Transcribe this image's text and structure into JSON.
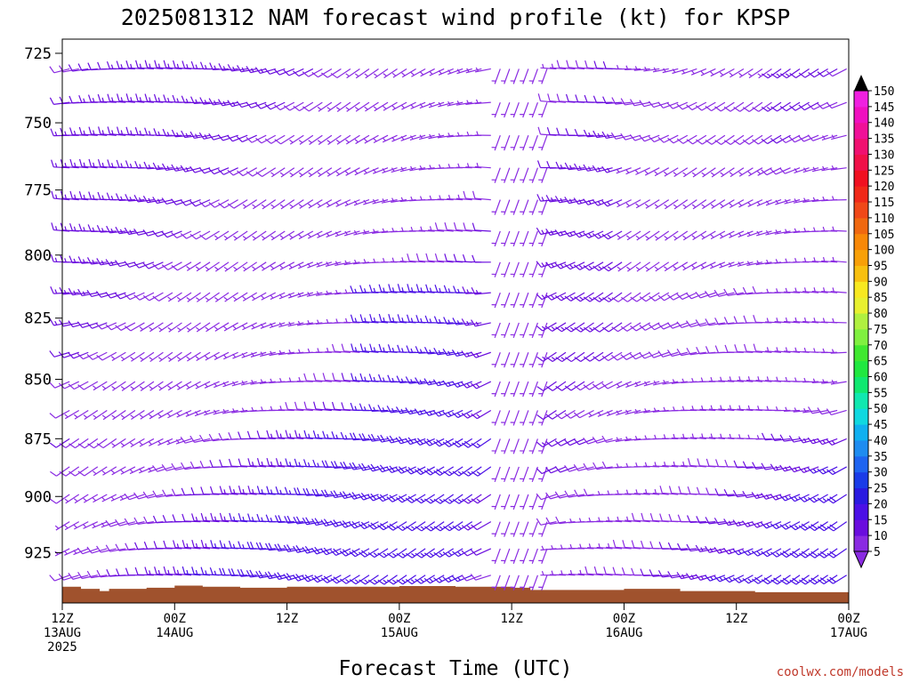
{
  "chart_data": {
    "type": "wind-barb-profile",
    "title": "2025081312 NAM forecast wind profile (kt) for KPSP",
    "xlabel": "Forecast Time (UTC)",
    "credit": "coolwx.com/models",
    "x_hours": [
      0,
      84
    ],
    "y_pressure_range_hpa": [
      720,
      948
    ],
    "y_ticks": [
      725,
      750,
      775,
      800,
      825,
      850,
      875,
      900,
      925
    ],
    "x_ticks": [
      {
        "hour": 0,
        "l1": "12Z",
        "l2": "13AUG",
        "l3": "2025"
      },
      {
        "hour": 12,
        "l1": "00Z",
        "l2": "14AUG",
        "l3": ""
      },
      {
        "hour": 24,
        "l1": "12Z",
        "l2": "",
        "l3": ""
      },
      {
        "hour": 36,
        "l1": "00Z",
        "l2": "15AUG",
        "l3": ""
      },
      {
        "hour": 48,
        "l1": "12Z",
        "l2": "",
        "l3": ""
      },
      {
        "hour": 60,
        "l1": "00Z",
        "l2": "16AUG",
        "l3": ""
      },
      {
        "hour": 72,
        "l1": "12Z",
        "l2": "",
        "l3": ""
      },
      {
        "hour": 84,
        "l1": "00Z",
        "l2": "17AUG",
        "l3": ""
      }
    ],
    "wind_levels_hpa": [
      728,
      740,
      752,
      764,
      776,
      788,
      800,
      812,
      824,
      836,
      848,
      860,
      872,
      884,
      896,
      908,
      920,
      932
    ],
    "barb_interval_hours": 1,
    "surface_pressure_hpa": [
      {
        "hour": 0,
        "p": 940.5
      },
      {
        "hour": 2,
        "p": 941.5
      },
      {
        "hour": 4,
        "p": 942.5
      },
      {
        "hour": 5,
        "p": 941.5
      },
      {
        "hour": 9,
        "p": 941
      },
      {
        "hour": 12,
        "p": 940
      },
      {
        "hour": 15,
        "p": 940.5
      },
      {
        "hour": 19,
        "p": 941
      },
      {
        "hour": 24,
        "p": 940.5
      },
      {
        "hour": 33,
        "p": 940.5
      },
      {
        "hour": 36,
        "p": 940.2
      },
      {
        "hour": 42,
        "p": 940.5
      },
      {
        "hour": 48,
        "p": 941
      },
      {
        "hour": 50,
        "p": 942
      },
      {
        "hour": 60,
        "p": 941.5
      },
      {
        "hour": 66,
        "p": 942.5
      },
      {
        "hour": 74,
        "p": 943
      },
      {
        "hour": 84,
        "p": 943
      }
    ],
    "terrain_color": "#a0522d",
    "colorbar": {
      "levels": [
        5,
        10,
        15,
        20,
        25,
        30,
        35,
        40,
        45,
        50,
        55,
        60,
        65,
        70,
        75,
        80,
        85,
        90,
        95,
        100,
        105,
        110,
        115,
        120,
        125,
        130,
        135,
        140,
        145,
        150
      ],
      "colors": [
        "#8a2be2",
        "#6a0dde",
        "#4b10e6",
        "#2a1ae0",
        "#1a3ce8",
        "#1e64f0",
        "#1e8cf0",
        "#10b0f0",
        "#10d8e0",
        "#10e8b0",
        "#10e870",
        "#20e840",
        "#40e830",
        "#80f040",
        "#b0f040",
        "#e8f030",
        "#f8e820",
        "#f8c010",
        "#f8a008",
        "#f88808",
        "#f06810",
        "#f04818",
        "#f02818",
        "#f01020",
        "#f01048",
        "#f01070",
        "#f01098",
        "#f010c0",
        "#f020e0",
        "#f040f8"
      ]
    }
  }
}
